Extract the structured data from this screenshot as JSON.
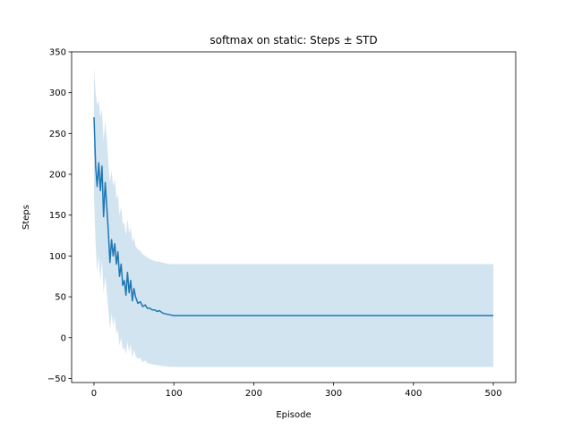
{
  "chart_data": {
    "type": "line",
    "title": "softmax on static: Steps ± STD",
    "xlabel": "Episode",
    "ylabel": "Steps",
    "xlim": [
      -28,
      528
    ],
    "ylim": [
      -55,
      350
    ],
    "xticks": [
      0,
      100,
      200,
      300,
      400,
      500
    ],
    "yticks": [
      -50,
      0,
      50,
      100,
      150,
      200,
      250,
      300,
      350
    ],
    "grid": false,
    "legend": "none",
    "colors": {
      "line": "#1f77b4",
      "band": "#1f77b4",
      "band_opacity": 0.2
    },
    "series": [
      {
        "x": [
          0,
          2,
          4,
          6,
          8,
          10,
          12,
          14,
          16,
          18,
          20,
          22,
          24,
          26,
          28,
          30,
          32,
          34,
          36,
          38,
          40,
          42,
          44,
          46,
          48,
          50,
          52,
          55,
          58,
          61,
          64,
          67,
          70,
          73,
          76,
          79,
          82,
          86,
          90,
          95,
          100,
          110,
          120,
          150,
          200,
          300,
          400,
          500
        ],
        "y": [
          270,
          210,
          185,
          214,
          180,
          210,
          148,
          190,
          160,
          130,
          92,
          120,
          100,
          115,
          90,
          105,
          75,
          90,
          64,
          70,
          52,
          80,
          55,
          70,
          45,
          60,
          50,
          42,
          44,
          38,
          40,
          36,
          36,
          34,
          34,
          32,
          33,
          30,
          29,
          28,
          27,
          27,
          27,
          27,
          27,
          27,
          27,
          27
        ],
        "upper": [
          330,
          300,
          285,
          290,
          270,
          280,
          240,
          265,
          245,
          215,
          190,
          205,
          185,
          195,
          170,
          175,
          150,
          160,
          140,
          140,
          125,
          145,
          128,
          135,
          118,
          122,
          112,
          108,
          106,
          102,
          100,
          98,
          96,
          95,
          94,
          93,
          93,
          92,
          91,
          90,
          90,
          90,
          90,
          90,
          90,
          90,
          90,
          90
        ],
        "lower": [
          170,
          115,
          80,
          100,
          70,
          95,
          55,
          75,
          55,
          35,
          10,
          30,
          15,
          25,
          5,
          10,
          -10,
          0,
          -15,
          -12,
          -20,
          -5,
          -18,
          -8,
          -25,
          -15,
          -22,
          -26,
          -25,
          -30,
          -28,
          -31,
          -32,
          -33,
          -33,
          -34,
          -34,
          -35,
          -35,
          -36,
          -36,
          -36,
          -36,
          -36,
          -36,
          -36,
          -36,
          -36
        ]
      }
    ]
  }
}
